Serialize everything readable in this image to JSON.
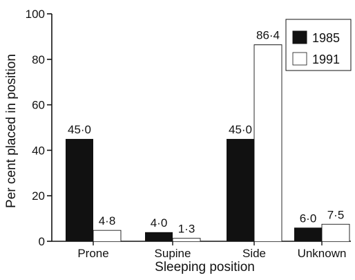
{
  "chart_data": {
    "type": "bar",
    "xlabel": "Sleeping position",
    "ylabel": "Per cent placed in position",
    "ylim": [
      0,
      100
    ],
    "yticks": [
      "0",
      "20",
      "40",
      "60",
      "80",
      "100"
    ],
    "categories": [
      "Prone",
      "Supine",
      "Side",
      "Unknown"
    ],
    "series": [
      {
        "name": "1985",
        "color": "#111111",
        "values": [
          45.0,
          4.0,
          45.0,
          6.0
        ],
        "labels": [
          "45·0",
          "4·0",
          "45·0",
          "6·0"
        ]
      },
      {
        "name": "1991",
        "color": "#ffffff",
        "values": [
          4.8,
          1.3,
          86.4,
          7.5
        ],
        "labels": [
          "4·8",
          "1·3",
          "86·4",
          "7·5"
        ]
      }
    ],
    "legend": {
      "position": "top-right"
    },
    "grid": false
  }
}
